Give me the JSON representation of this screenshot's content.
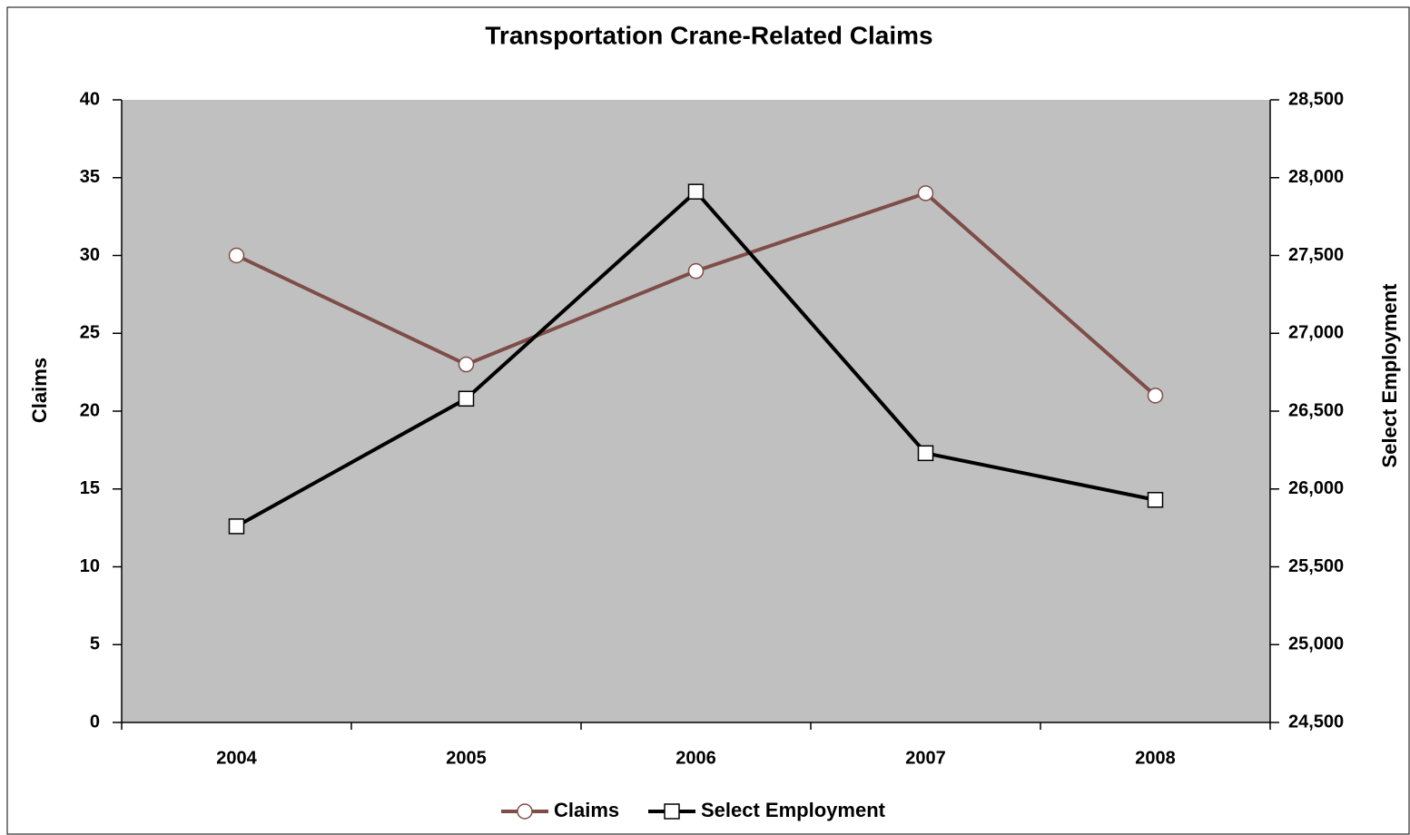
{
  "chart_data": {
    "type": "line",
    "title": "Transportation Crane-Related Claims",
    "categories": [
      "2004",
      "2005",
      "2006",
      "2007",
      "2008"
    ],
    "y_label": "Claims",
    "y2_label": "Select Employment",
    "ylim": [
      0,
      40
    ],
    "yticks": [
      0,
      5,
      10,
      15,
      20,
      25,
      30,
      35,
      40
    ],
    "y2lim": [
      24500,
      28500
    ],
    "y2ticks": [
      {
        "value": 24500,
        "label": "24,500"
      },
      {
        "value": 25000,
        "label": "25,000"
      },
      {
        "value": 25500,
        "label": "25,500"
      },
      {
        "value": 26000,
        "label": "26,000"
      },
      {
        "value": 26500,
        "label": "26,500"
      },
      {
        "value": 27000,
        "label": "27,000"
      },
      {
        "value": 27500,
        "label": "27,500"
      },
      {
        "value": 28000,
        "label": "28,000"
      },
      {
        "value": 28500,
        "label": "28,500"
      }
    ],
    "legend": "bottom",
    "plot_background": "#c0c0c0",
    "series": [
      {
        "name": "Claims",
        "color": "#7f4d48",
        "marker": "circle",
        "values": [
          30,
          23,
          29,
          34,
          21
        ]
      },
      {
        "name": "Select Employment",
        "color": "#000000",
        "marker": "square",
        "axis": "y2",
        "values": [
          25760,
          26580,
          27910,
          26230,
          25930
        ]
      }
    ]
  }
}
